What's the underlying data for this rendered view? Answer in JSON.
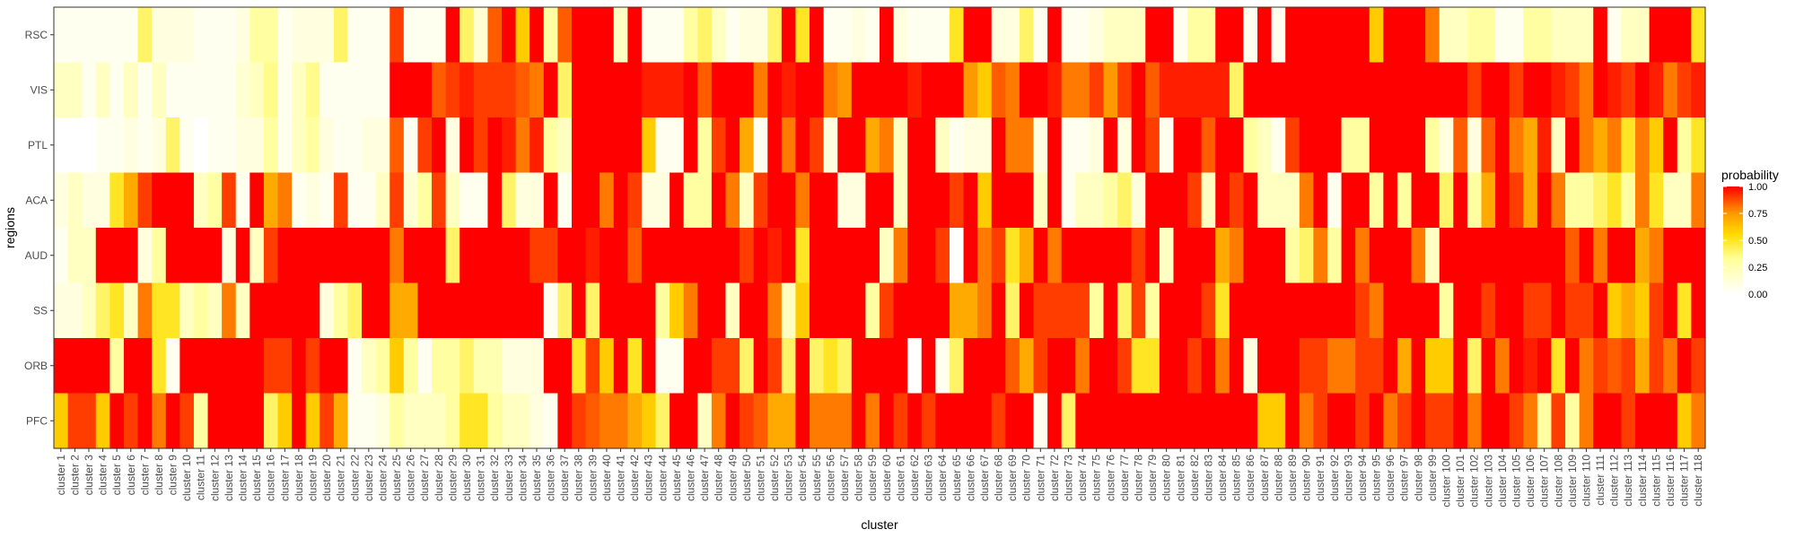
{
  "chart_data": {
    "type": "heatmap",
    "xlabel": "cluster",
    "ylabel": "regions",
    "y_categories": [
      "RSC",
      "VIS",
      "PTL",
      "ACA",
      "AUD",
      "SS",
      "ORB",
      "PFC"
    ],
    "x_categories": [
      "cluster 1",
      "cluster 2",
      "cluster 3",
      "cluster 4",
      "cluster 5",
      "cluster 6",
      "cluster 7",
      "cluster 8",
      "cluster 9",
      "cluster 10",
      "cluster 11",
      "cluster 12",
      "cluster 13",
      "cluster 14",
      "cluster 15",
      "cluster 16",
      "cluster 17",
      "cluster 18",
      "cluster 19",
      "cluster 20",
      "cluster 21",
      "cluster 22",
      "cluster 23",
      "cluster 24",
      "cluster 25",
      "cluster 26",
      "cluster 27",
      "cluster 28",
      "cluster 29",
      "cluster 30",
      "cluster 31",
      "cluster 32",
      "cluster 33",
      "cluster 34",
      "cluster 35",
      "cluster 36",
      "cluster 37",
      "cluster 38",
      "cluster 39",
      "cluster 40",
      "cluster 41",
      "cluster 42",
      "cluster 43",
      "cluster 44",
      "cluster 45",
      "cluster 46",
      "cluster 47",
      "cluster 48",
      "cluster 49",
      "cluster 50",
      "cluster 51",
      "cluster 52",
      "cluster 53",
      "cluster 54",
      "cluster 55",
      "cluster 56",
      "cluster 57",
      "cluster 58",
      "cluster 59",
      "cluster 60",
      "cluster 61",
      "cluster 62",
      "cluster 63",
      "cluster 64",
      "cluster 65",
      "cluster 66",
      "cluster 67",
      "cluster 68",
      "cluster 69",
      "cluster 70",
      "cluster 71",
      "cluster 72",
      "cluster 73",
      "cluster 74",
      "cluster 75",
      "cluster 76",
      "cluster 77",
      "cluster 78",
      "cluster 79",
      "cluster 80",
      "cluster 81",
      "cluster 82",
      "cluster 83",
      "cluster 84",
      "cluster 85",
      "cluster 86",
      "cluster 87",
      "cluster 88",
      "cluster 89",
      "cluster 90",
      "cluster 91",
      "cluster 92",
      "cluster 93",
      "cluster 94",
      "cluster 95",
      "cluster 96",
      "cluster 97",
      "cluster 98",
      "cluster 99",
      "cluster 100",
      "cluster 101",
      "cluster 102",
      "cluster 103",
      "cluster 104",
      "cluster 105",
      "cluster 106",
      "cluster 107",
      "cluster 108",
      "cluster 109",
      "cluster 110",
      "cluster 111",
      "cluster 112",
      "cluster 113",
      "cluster 114",
      "cluster 115",
      "cluster 116",
      "cluster 117",
      "cluster 118"
    ],
    "values": [
      [
        0.05,
        0.05,
        0.05,
        0.05,
        0.05,
        0.05,
        0.4,
        0.1,
        0.1,
        0.1,
        0.05,
        0.05,
        0.05,
        0.1,
        0.3,
        0.3,
        0.05,
        0.1,
        0.1,
        0.1,
        0.4,
        0.05,
        0.05,
        0.05,
        0.9,
        0.05,
        0.05,
        0.05,
        1.0,
        0.4,
        0.15,
        0.85,
        1.0,
        0.6,
        1.0,
        0.3,
        0.85,
        1.0,
        1.0,
        1.0,
        0.2,
        1.0,
        0.05,
        0.05,
        0.05,
        0.3,
        0.4,
        0.2,
        0.05,
        0.1,
        0.1,
        0.4,
        1.0,
        0.5,
        1.0,
        0.05,
        0.05,
        0.1,
        0.05,
        1.0,
        0.1,
        0.05,
        0.05,
        0.05,
        0.5,
        1.0,
        1.0,
        0.1,
        0.1,
        0.4,
        0.05,
        1.0,
        0.05,
        0.05,
        0.1,
        0.2,
        0.2,
        0.2,
        1.0,
        1.0,
        0.05,
        0.3,
        0.3,
        1.0,
        1.0,
        0.05,
        1.0,
        0.05,
        1.0,
        1.0,
        1.0,
        1.0,
        1.0,
        1.0,
        0.6,
        1.0,
        1.0,
        1.0,
        0.8,
        0.2,
        0.2,
        0.3,
        0.3,
        0.05,
        0.05,
        0.3,
        0.3,
        0.2,
        0.2,
        0.2,
        1.0,
        0.05,
        0.2,
        0.2,
        1.0,
        1.0,
        1.0,
        0.5
      ],
      [
        0.2,
        0.2,
        0.05,
        0.2,
        0.05,
        0.2,
        0.05,
        0.2,
        0.05,
        0.05,
        0.05,
        0.05,
        0.05,
        0.15,
        0.2,
        0.35,
        0.05,
        0.2,
        0.35,
        0.05,
        0.05,
        0.05,
        0.05,
        0.05,
        1.0,
        1.0,
        1.0,
        0.85,
        0.9,
        0.95,
        0.9,
        0.9,
        0.9,
        0.85,
        0.8,
        1.0,
        0.4,
        1.0,
        1.0,
        1.0,
        1.0,
        1.0,
        0.95,
        0.95,
        0.95,
        1.0,
        0.85,
        1.0,
        1.0,
        1.0,
        0.8,
        1.0,
        0.95,
        1.0,
        1.0,
        0.8,
        0.75,
        1.0,
        1.0,
        1.0,
        1.0,
        0.95,
        1.0,
        1.0,
        1.0,
        0.75,
        0.6,
        0.85,
        0.8,
        1.0,
        1.0,
        0.95,
        0.8,
        0.8,
        0.9,
        0.75,
        0.9,
        1.0,
        0.85,
        0.95,
        0.95,
        0.95,
        0.95,
        0.95,
        0.4,
        1.0,
        1.0,
        1.0,
        1.0,
        1.0,
        1.0,
        1.0,
        1.0,
        1.0,
        1.0,
        1.0,
        1.0,
        1.0,
        1.0,
        1.0,
        1.0,
        0.9,
        1.0,
        1.0,
        0.9,
        1.0,
        1.0,
        0.95,
        0.9,
        0.8,
        1.0,
        0.95,
        0.9,
        1.0,
        0.95,
        0.8,
        0.9,
        0.95
      ],
      [
        0.0,
        0.0,
        0.0,
        0.05,
        0.05,
        0.1,
        0.05,
        0.1,
        0.4,
        0.05,
        0.0,
        0.05,
        0.05,
        0.1,
        0.1,
        0.3,
        0.05,
        0.2,
        0.3,
        0.1,
        0.05,
        0.05,
        0.1,
        0.1,
        0.85,
        0.05,
        0.9,
        1.0,
        0.1,
        1.0,
        0.9,
        1.0,
        0.95,
        0.8,
        0.95,
        0.3,
        0.2,
        1.0,
        1.0,
        1.0,
        1.0,
        1.0,
        0.6,
        0.05,
        0.05,
        1.0,
        0.3,
        0.9,
        1.0,
        0.7,
        0.05,
        1.0,
        0.8,
        1.0,
        0.9,
        0.1,
        1.0,
        1.0,
        0.7,
        0.8,
        0.2,
        1.0,
        1.0,
        0.2,
        0.05,
        0.1,
        0.1,
        1.0,
        0.8,
        0.8,
        0.1,
        1.0,
        0.05,
        0.05,
        0.1,
        1.0,
        0.1,
        1.0,
        0.9,
        0.05,
        1.0,
        1.0,
        0.85,
        1.0,
        1.0,
        0.3,
        0.2,
        0.05,
        0.9,
        1.0,
        1.0,
        1.0,
        0.3,
        0.3,
        1.0,
        1.0,
        1.0,
        1.0,
        0.3,
        0.1,
        0.85,
        0.1,
        0.85,
        1.0,
        0.8,
        0.7,
        0.95,
        0.2,
        1.0,
        0.8,
        0.7,
        0.8,
        0.5,
        0.8,
        0.6,
        1.0,
        0.3,
        0.5
      ],
      [
        0.1,
        0.2,
        0.1,
        0.1,
        0.5,
        0.7,
        0.9,
        1.0,
        1.0,
        1.0,
        0.2,
        0.3,
        0.9,
        0.05,
        1.0,
        0.7,
        0.8,
        0.05,
        0.1,
        0.05,
        0.9,
        0.05,
        0.05,
        0.2,
        0.9,
        0.15,
        0.3,
        0.9,
        0.2,
        0.05,
        0.05,
        1.0,
        0.4,
        0.1,
        0.1,
        1.0,
        0.05,
        1.0,
        1.0,
        0.8,
        1.0,
        0.9,
        0.1,
        0.1,
        1.0,
        0.3,
        0.3,
        1.0,
        0.8,
        0.2,
        0.9,
        1.0,
        1.0,
        0.8,
        1.0,
        1.0,
        0.1,
        0.1,
        1.0,
        1.0,
        0.2,
        1.0,
        1.0,
        1.0,
        0.9,
        1.0,
        0.6,
        1.0,
        1.0,
        1.0,
        0.2,
        1.0,
        0.05,
        0.2,
        0.2,
        0.3,
        0.4,
        0.1,
        1.0,
        1.0,
        1.0,
        0.9,
        0.2,
        1.0,
        0.9,
        1.0,
        0.2,
        0.2,
        0.2,
        0.8,
        1.0,
        0.05,
        1.0,
        1.0,
        0.3,
        1.0,
        0.3,
        1.0,
        1.0,
        0.4,
        1.0,
        0.3,
        0.7,
        1.0,
        0.9,
        0.7,
        1.0,
        0.8,
        0.3,
        0.3,
        0.4,
        0.5,
        0.3,
        0.8,
        0.5,
        0.2,
        0.2,
        0.8
      ],
      [
        0.05,
        0.2,
        0.2,
        1.0,
        1.0,
        1.0,
        0.1,
        0.3,
        1.0,
        1.0,
        1.0,
        1.0,
        0.1,
        1.0,
        0.2,
        0.9,
        1.0,
        1.0,
        1.0,
        1.0,
        1.0,
        1.0,
        1.0,
        1.0,
        0.8,
        1.0,
        1.0,
        1.0,
        0.4,
        1.0,
        1.0,
        1.0,
        1.0,
        1.0,
        0.9,
        0.9,
        1.0,
        1.0,
        0.95,
        1.0,
        1.0,
        0.85,
        1.0,
        1.0,
        1.0,
        1.0,
        1.0,
        1.0,
        1.0,
        0.9,
        1.0,
        0.95,
        1.0,
        0.5,
        1.0,
        1.0,
        1.0,
        1.0,
        1.0,
        0.2,
        0.8,
        1.0,
        1.0,
        0.9,
        0.0,
        1.0,
        0.8,
        0.9,
        0.5,
        0.7,
        1.0,
        0.8,
        1.0,
        1.0,
        1.0,
        1.0,
        1.0,
        0.9,
        1.0,
        0.2,
        1.0,
        1.0,
        1.0,
        0.7,
        0.8,
        1.0,
        1.0,
        1.0,
        0.3,
        0.4,
        0.8,
        0.3,
        1.0,
        0.8,
        1.0,
        1.0,
        1.0,
        0.8,
        0.2,
        1.0,
        1.0,
        1.0,
        1.0,
        1.0,
        1.0,
        1.0,
        1.0,
        1.0,
        0.85,
        1.0,
        0.8,
        1.0,
        1.0,
        0.7,
        0.8,
        1.0,
        1.0,
        1.0
      ],
      [
        0.1,
        0.1,
        0.2,
        0.4,
        0.5,
        0.2,
        0.8,
        0.5,
        0.5,
        0.2,
        0.3,
        0.2,
        0.8,
        0.2,
        1.0,
        1.0,
        1.0,
        1.0,
        1.0,
        0.1,
        0.3,
        0.4,
        1.0,
        1.0,
        0.7,
        0.7,
        1.0,
        1.0,
        1.0,
        1.0,
        1.0,
        1.0,
        1.0,
        1.0,
        1.0,
        0.05,
        0.4,
        1.0,
        0.4,
        1.0,
        1.0,
        1.0,
        1.0,
        0.3,
        0.6,
        0.8,
        1.0,
        1.0,
        0.2,
        1.0,
        1.0,
        0.8,
        0.2,
        0.6,
        1.0,
        1.0,
        1.0,
        1.0,
        0.3,
        0.9,
        1.0,
        1.0,
        1.0,
        1.0,
        0.7,
        0.7,
        0.8,
        1.0,
        0.4,
        1.0,
        0.9,
        0.9,
        0.9,
        0.9,
        0.3,
        1.0,
        0.4,
        0.9,
        0.3,
        1.0,
        1.0,
        1.0,
        0.9,
        0.5,
        1.0,
        1.0,
        1.0,
        1.0,
        1.0,
        1.0,
        1.0,
        1.0,
        1.0,
        0.9,
        0.8,
        1.0,
        1.0,
        1.0,
        1.0,
        0.3,
        1.0,
        1.0,
        0.9,
        1.0,
        1.0,
        0.9,
        0.9,
        1.0,
        0.9,
        0.9,
        1.0,
        0.6,
        0.7,
        0.6,
        0.9,
        1.0,
        0.5,
        1.0
      ],
      [
        1.0,
        1.0,
        1.0,
        1.0,
        0.3,
        1.0,
        1.0,
        0.5,
        0.05,
        1.0,
        1.0,
        1.0,
        1.0,
        1.0,
        1.0,
        0.9,
        0.9,
        1.0,
        0.9,
        1.0,
        1.0,
        0.05,
        0.2,
        0.3,
        0.6,
        0.3,
        0.05,
        0.3,
        0.3,
        0.4,
        0.25,
        0.25,
        0.1,
        0.1,
        0.1,
        1.0,
        1.0,
        0.5,
        0.9,
        0.6,
        1.0,
        0.5,
        1.0,
        0.05,
        0.05,
        1.0,
        1.0,
        0.9,
        0.9,
        0.4,
        1.0,
        0.9,
        0.4,
        1.0,
        0.4,
        0.5,
        0.4,
        1.0,
        1.0,
        1.0,
        1.0,
        0.0,
        1.0,
        0.05,
        0.4,
        1.0,
        1.0,
        1.0,
        0.85,
        0.7,
        0.9,
        1.0,
        1.0,
        0.8,
        1.0,
        1.0,
        0.9,
        0.5,
        0.5,
        1.0,
        1.0,
        0.9,
        1.0,
        0.8,
        1.0,
        0.1,
        1.0,
        1.0,
        1.0,
        0.9,
        0.9,
        0.8,
        0.8,
        0.9,
        0.9,
        1.0,
        0.7,
        1.0,
        0.6,
        0.6,
        1.0,
        0.4,
        1.0,
        0.8,
        1.0,
        0.95,
        1.0,
        0.5,
        1.0,
        0.8,
        0.9,
        0.85,
        0.9,
        0.7,
        0.9,
        0.8,
        1.0,
        0.9
      ],
      [
        0.6,
        0.9,
        0.9,
        0.6,
        1.0,
        0.9,
        1.0,
        0.8,
        1.0,
        0.9,
        0.3,
        1.0,
        1.0,
        1.0,
        1.0,
        0.4,
        0.6,
        1.0,
        0.6,
        0.9,
        0.7,
        0.05,
        0.05,
        0.1,
        0.3,
        0.2,
        0.2,
        0.2,
        0.3,
        0.5,
        0.5,
        0.3,
        0.2,
        0.2,
        0.1,
        0.05,
        1.0,
        0.9,
        0.85,
        0.8,
        0.8,
        0.7,
        0.6,
        0.4,
        1.0,
        1.0,
        0.2,
        0.8,
        1.0,
        0.9,
        0.85,
        0.7,
        0.7,
        1.0,
        0.8,
        0.8,
        0.8,
        1.0,
        0.8,
        1.0,
        0.9,
        1.0,
        0.9,
        1.0,
        1.0,
        1.0,
        1.0,
        0.9,
        1.0,
        1.0,
        0.05,
        1.0,
        0.4,
        1.0,
        1.0,
        1.0,
        1.0,
        1.0,
        1.0,
        1.0,
        1.0,
        1.0,
        1.0,
        1.0,
        1.0,
        1.0,
        0.6,
        0.6,
        1.0,
        0.8,
        0.9,
        1.0,
        1.0,
        0.9,
        1.0,
        0.8,
        0.9,
        1.0,
        0.9,
        0.9,
        1.0,
        0.8,
        1.0,
        1.0,
        0.9,
        0.8,
        0.3,
        0.9,
        0.3,
        0.8,
        1.0,
        1.0,
        0.9,
        1.0,
        1.0,
        1.0,
        0.6,
        0.8
      ]
    ],
    "legend": {
      "title": "probability",
      "ticks": [
        "1.00",
        "0.75",
        "0.50",
        "0.25",
        "0.00"
      ],
      "tick_values": [
        1.0,
        0.75,
        0.5,
        0.25,
        0.0
      ],
      "placement": "right"
    },
    "color_scale": {
      "low": "#ffffff",
      "mid": "#ffff00",
      "high": "#ff0000"
    }
  }
}
